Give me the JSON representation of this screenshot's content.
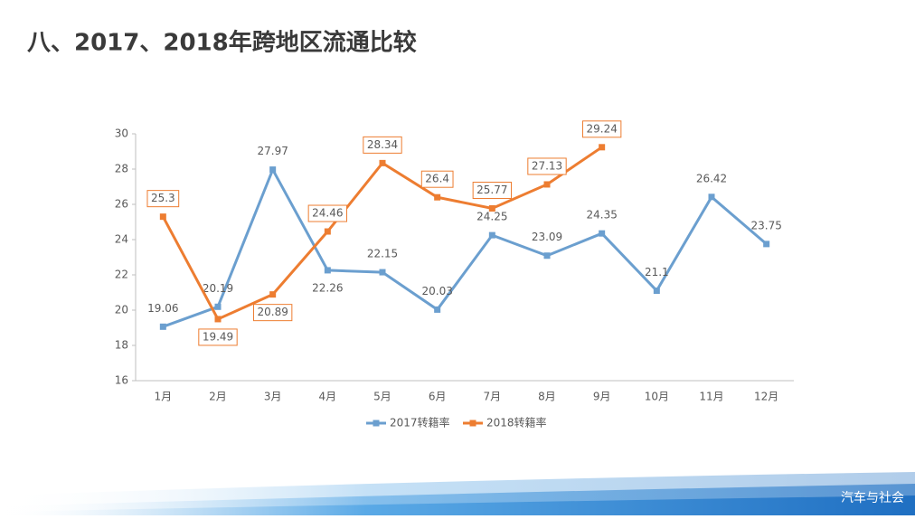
{
  "title": "八、2017、2018年跨地区流通比较",
  "watermark": "汽车与社会",
  "chart_data": {
    "type": "line",
    "categories": [
      "1月",
      "2月",
      "3月",
      "4月",
      "5月",
      "6月",
      "7月",
      "8月",
      "9月",
      "10月",
      "11月",
      "12月"
    ],
    "series": [
      {
        "name": "2017转籍率",
        "color": "#6b9fcf",
        "values": [
          19.06,
          20.19,
          27.97,
          22.26,
          22.15,
          20.03,
          24.25,
          23.09,
          24.35,
          21.1,
          26.42,
          23.75
        ]
      },
      {
        "name": "2018转籍率",
        "color": "#ed7d31",
        "values": [
          25.3,
          19.49,
          20.89,
          24.46,
          28.34,
          26.4,
          25.77,
          27.13,
          29.24,
          null,
          null,
          null
        ]
      }
    ],
    "ylim": [
      16,
      30
    ],
    "yticks": [
      16,
      18,
      20,
      22,
      24,
      26,
      28,
      30
    ],
    "grid": false,
    "legend": "bottom"
  }
}
